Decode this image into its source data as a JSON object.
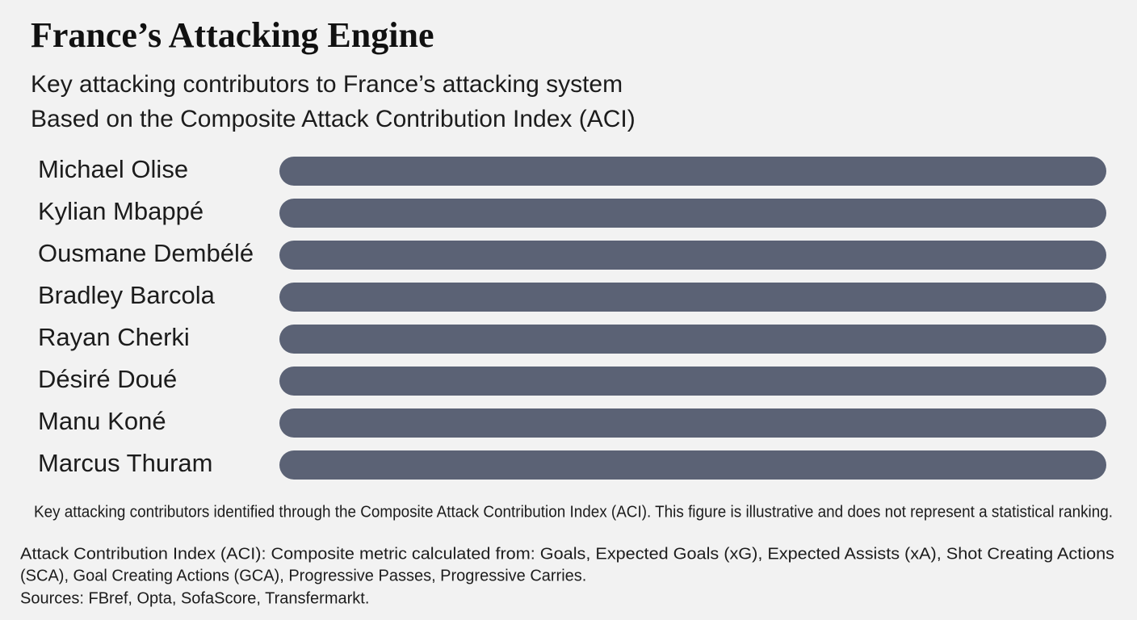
{
  "chart_data": {
    "type": "bar",
    "orientation": "horizontal",
    "title": "France’s Attacking Engine",
    "subtitle": [
      "Key attacking contributors to France’s attacking system",
      "Based on the Composite Attack Contribution Index (ACI)"
    ],
    "categories": [
      "Michael Olise",
      "Kylian Mbappé",
      "Ousmane Dembélé",
      "Bradley Barcola",
      "Rayan Cherki",
      "Désiré Doué",
      "Manu Koné",
      "Marcus Thuram"
    ],
    "values": [
      100,
      100,
      100,
      100,
      100,
      100,
      100,
      100
    ],
    "xlim": [
      0,
      100
    ],
    "color": "#5b6275",
    "footnote": "Key attacking contributors identified through the Composite Attack Contribution Index (ACI). This figure is illustrative and does not represent a statistical ranking.",
    "notes": [
      "Attack Contribution Index (ACI): Composite metric calculated from: Goals, Expected Goals (xG), Expected Assists (xA), Shot Creating Actions",
      "(SCA), Goal Creating Actions (GCA), Progressive Passes, Progressive Carries.",
      "Sources: FBref, Opta, SofaScore, Transfermarkt."
    ]
  }
}
